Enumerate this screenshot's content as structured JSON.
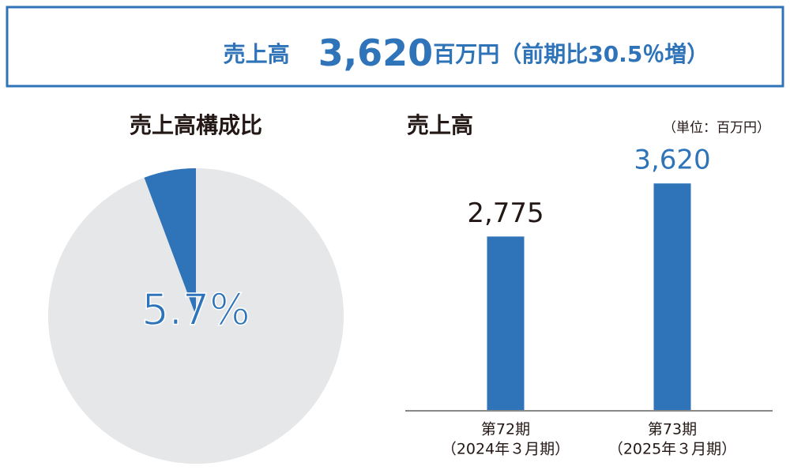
{
  "header": {
    "label": "売上高",
    "value": "3,620",
    "unit": "百万円",
    "note": "（前期比30.5％増）"
  },
  "chart_data": [
    {
      "type": "pie",
      "title": "売上高構成比",
      "values": [
        5.7,
        94.3
      ],
      "value_labels": [
        "5.7%",
        null
      ],
      "colors": [
        "#2f74b9",
        "#e6e7e9"
      ]
    },
    {
      "type": "bar",
      "title": "売上高",
      "unit_note": "（単位：百万円）",
      "categories": [
        "第72期",
        "第73期"
      ],
      "category_sublabels": [
        "（2024年３月期）",
        "（2025年３月期）"
      ],
      "values": [
        2775,
        3620
      ],
      "value_labels": [
        "2,775",
        "3,620"
      ],
      "value_label_colors": [
        "#231815",
        "#2f74b9"
      ],
      "color": "#2f74b9",
      "ylim": [
        0,
        4000
      ]
    }
  ]
}
